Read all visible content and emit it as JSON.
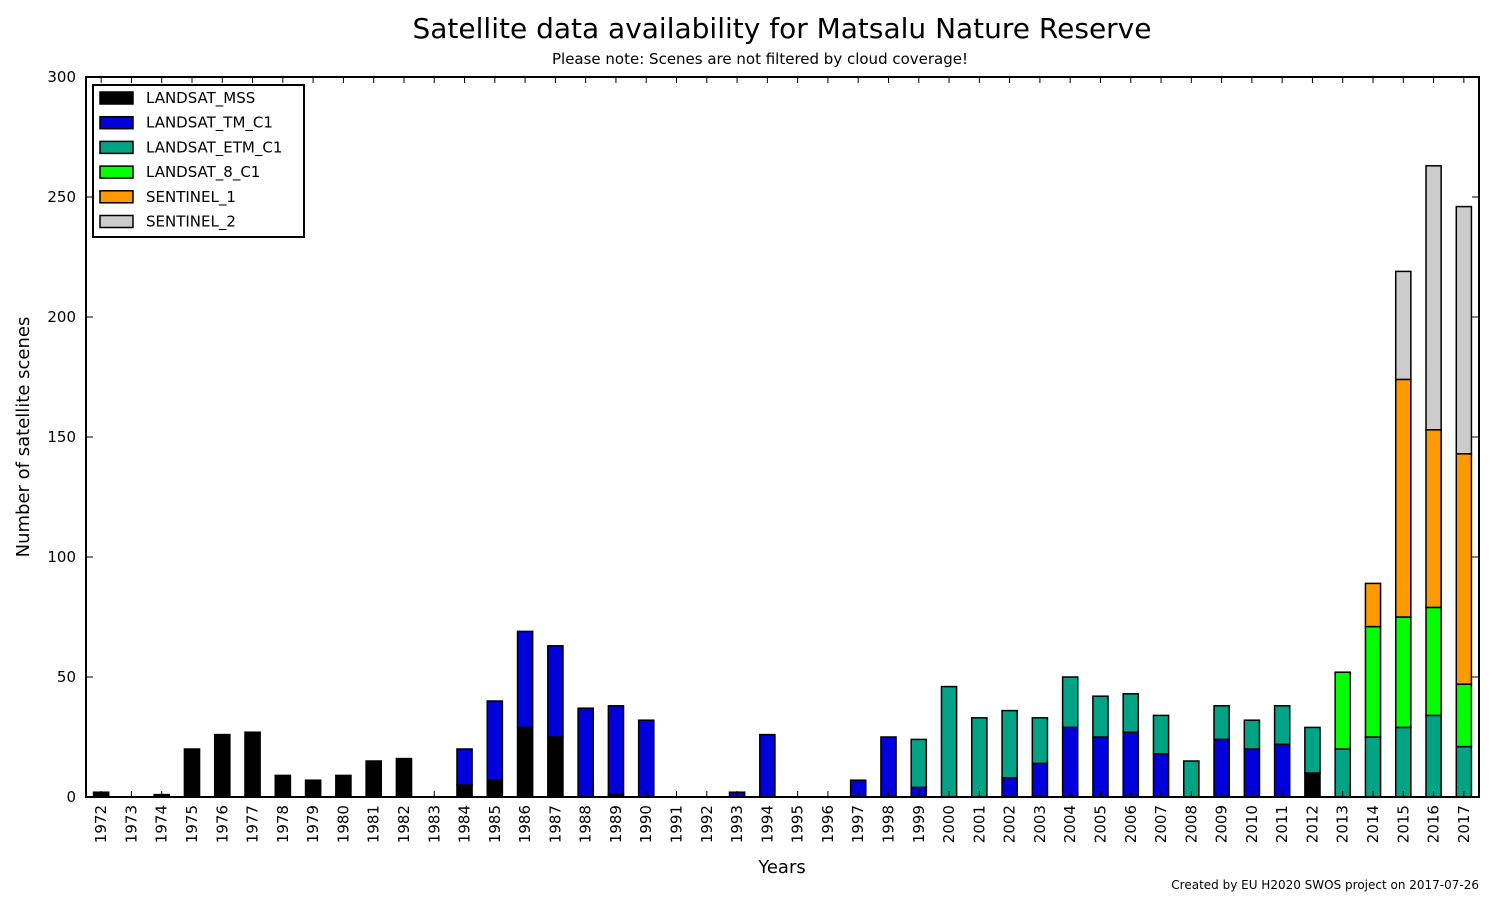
{
  "chart_data": {
    "type": "bar",
    "stacked": true,
    "title": "Satellite data availability for Matsalu Nature Reserve",
    "subtitle": "Please note: Scenes are not filtered by cloud coverage!",
    "xlabel": "Years",
    "ylabel": "Number of satellite scenes",
    "ylim": [
      0,
      300
    ],
    "yticks": [
      0,
      50,
      100,
      150,
      200,
      250,
      300
    ],
    "grid": false,
    "legend_position": "top-left",
    "credit": "Created by EU H2020 SWOS project on 2017-07-26",
    "categories": [
      "1972",
      "1973",
      "1974",
      "1975",
      "1976",
      "1977",
      "1978",
      "1979",
      "1980",
      "1981",
      "1982",
      "1983",
      "1984",
      "1985",
      "1986",
      "1987",
      "1988",
      "1989",
      "1990",
      "1991",
      "1992",
      "1993",
      "1994",
      "1995",
      "1996",
      "1997",
      "1998",
      "1999",
      "2000",
      "2001",
      "2002",
      "2003",
      "2004",
      "2005",
      "2006",
      "2007",
      "2008",
      "2009",
      "2010",
      "2011",
      "2012",
      "2013",
      "2014",
      "2015",
      "2016",
      "2017"
    ],
    "series": [
      {
        "name": "LANDSAT_MSS",
        "color": "#000000",
        "values": [
          2,
          0,
          1,
          20,
          26,
          27,
          9,
          7,
          9,
          15,
          16,
          0,
          5,
          7,
          29,
          25,
          0,
          1,
          0,
          0,
          0,
          0,
          0,
          0,
          0,
          0,
          0,
          0,
          0,
          0,
          0,
          0,
          0,
          0,
          0,
          0,
          0,
          0,
          0,
          0,
          10,
          0,
          0,
          0,
          0,
          0
        ]
      },
      {
        "name": "LANDSAT_TM_C1",
        "color": "#0000dd",
        "values": [
          0,
          0,
          0,
          0,
          0,
          0,
          0,
          0,
          0,
          0,
          0,
          0,
          15,
          33,
          40,
          38,
          37,
          37,
          32,
          0,
          0,
          2,
          26,
          0,
          0,
          7,
          25,
          4,
          0,
          0,
          8,
          14,
          29,
          25,
          27,
          18,
          0,
          24,
          20,
          22,
          0,
          0,
          0,
          0,
          0,
          0
        ]
      },
      {
        "name": "LANDSAT_ETM_C1",
        "color": "#00a384",
        "values": [
          0,
          0,
          0,
          0,
          0,
          0,
          0,
          0,
          0,
          0,
          0,
          0,
          0,
          0,
          0,
          0,
          0,
          0,
          0,
          0,
          0,
          0,
          0,
          0,
          0,
          0,
          0,
          20,
          46,
          33,
          28,
          19,
          21,
          17,
          16,
          16,
          15,
          14,
          12,
          16,
          19,
          20,
          25,
          29,
          34,
          21
        ]
      },
      {
        "name": "LANDSAT_8_C1",
        "color": "#00ff00",
        "values": [
          0,
          0,
          0,
          0,
          0,
          0,
          0,
          0,
          0,
          0,
          0,
          0,
          0,
          0,
          0,
          0,
          0,
          0,
          0,
          0,
          0,
          0,
          0,
          0,
          0,
          0,
          0,
          0,
          0,
          0,
          0,
          0,
          0,
          0,
          0,
          0,
          0,
          0,
          0,
          0,
          0,
          32,
          46,
          46,
          45,
          26
        ]
      },
      {
        "name": "SENTINEL_1",
        "color": "#ff9900",
        "values": [
          0,
          0,
          0,
          0,
          0,
          0,
          0,
          0,
          0,
          0,
          0,
          0,
          0,
          0,
          0,
          0,
          0,
          0,
          0,
          0,
          0,
          0,
          0,
          0,
          0,
          0,
          0,
          0,
          0,
          0,
          0,
          0,
          0,
          0,
          0,
          0,
          0,
          0,
          0,
          0,
          0,
          0,
          18,
          99,
          74,
          96
        ]
      },
      {
        "name": "SENTINEL_2",
        "color": "#cccccc",
        "values": [
          0,
          0,
          0,
          0,
          0,
          0,
          0,
          0,
          0,
          0,
          0,
          0,
          0,
          0,
          0,
          0,
          0,
          0,
          0,
          0,
          0,
          0,
          0,
          0,
          0,
          0,
          0,
          0,
          0,
          0,
          0,
          0,
          0,
          0,
          0,
          0,
          0,
          0,
          0,
          0,
          0,
          0,
          0,
          45,
          110,
          103
        ]
      }
    ]
  }
}
